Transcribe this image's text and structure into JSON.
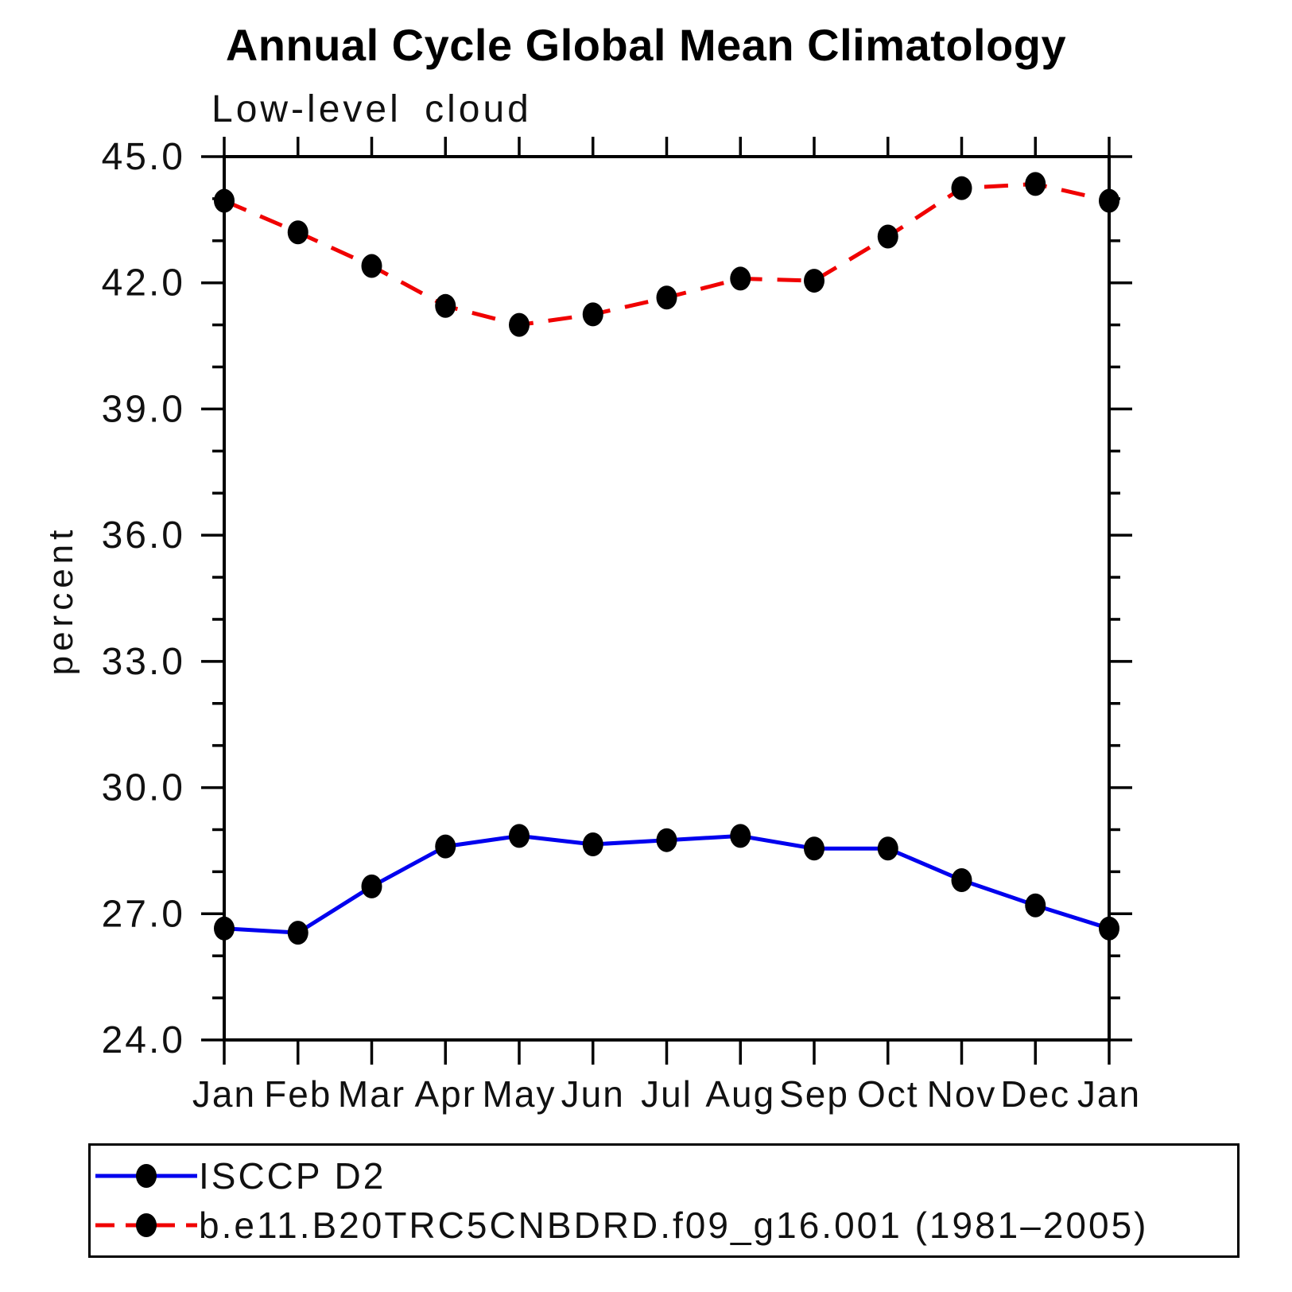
{
  "title": "Annual Cycle Global Mean Climatology",
  "subtitle": "Low-level cloud",
  "y_axis_label": "percent",
  "chart_data": {
    "type": "line",
    "categories": [
      "Jan",
      "Feb",
      "Mar",
      "Apr",
      "May",
      "Jun",
      "Jul",
      "Aug",
      "Sep",
      "Oct",
      "Nov",
      "Dec",
      "Jan"
    ],
    "series": [
      {
        "name": "ISCCP D2",
        "color": "#0000EE",
        "line_style": "solid",
        "marker": "filled-black-circle",
        "values": [
          26.65,
          26.55,
          27.65,
          28.6,
          28.85,
          28.65,
          28.75,
          28.85,
          28.55,
          28.55,
          27.8,
          27.2,
          26.65
        ]
      },
      {
        "name": "b.e11.B20TRC5CNBDRD.f09_g16.001 (1981–2005)",
        "color": "#F00000",
        "line_style": "dashed",
        "marker": "filled-black-circle",
        "values": [
          43.95,
          43.2,
          42.4,
          41.45,
          41.0,
          41.25,
          41.65,
          42.1,
          42.05,
          43.1,
          44.25,
          44.35,
          43.95
        ]
      }
    ],
    "xlabel": "",
    "ylabel": "percent",
    "ylim": [
      24.0,
      45.0
    ],
    "y_major_tick_step": 3.0,
    "y_minor_tick_step": 1.0,
    "y_tick_labels": [
      "24.0",
      "27.0",
      "30.0",
      "33.0",
      "36.0",
      "39.0",
      "42.0",
      "45.0"
    ],
    "grid": false,
    "frame": "box-with-outward-ticks",
    "legend_position": "bottom-left-box"
  },
  "legend": {
    "entries": [
      {
        "label": "ISCCP D2"
      },
      {
        "label": "b.e11.B20TRC5CNBDRD.f09_g16.001 (1981–2005)"
      }
    ]
  }
}
